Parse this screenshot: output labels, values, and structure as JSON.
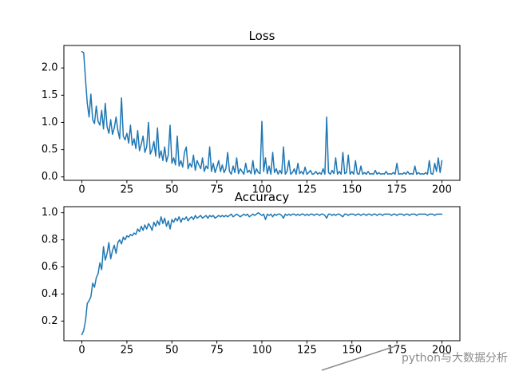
{
  "figure": {
    "background": "#ffffff",
    "line_color": "#1f77b4",
    "axis_color": "#000000",
    "watermark": {
      "text": "python与大数据分析",
      "color": "#8c8c8c"
    }
  },
  "chart_data": [
    {
      "type": "line",
      "title": "Loss",
      "xlabel": "",
      "ylabel": "",
      "legend": "none",
      "grid": false,
      "x_start": 0,
      "x_step": 1,
      "xlim": [
        -10,
        210
      ],
      "ylim": [
        -0.0625,
        2.4125
      ],
      "xticks": [
        0,
        25,
        50,
        75,
        100,
        125,
        150,
        175,
        200
      ],
      "yticks": [
        0.0,
        0.5,
        1.0,
        1.5,
        2.0
      ],
      "values": [
        2.3,
        2.28,
        1.8,
        1.35,
        1.1,
        1.52,
        1.05,
        0.98,
        1.3,
        1.02,
        0.95,
        1.22,
        0.88,
        1.35,
        0.92,
        0.8,
        1.05,
        0.78,
        0.9,
        1.1,
        0.85,
        0.7,
        1.45,
        0.75,
        0.68,
        0.8,
        0.62,
        0.95,
        0.58,
        0.7,
        0.52,
        0.85,
        0.48,
        0.6,
        0.75,
        0.45,
        0.55,
        1.0,
        0.42,
        0.5,
        0.65,
        0.38,
        0.9,
        0.35,
        0.48,
        0.3,
        0.55,
        0.28,
        0.4,
        0.95,
        0.25,
        0.35,
        0.22,
        0.75,
        0.2,
        0.3,
        0.18,
        0.45,
        0.55,
        0.15,
        0.25,
        0.18,
        0.4,
        0.12,
        0.3,
        0.22,
        0.15,
        0.35,
        0.1,
        0.2,
        0.15,
        0.55,
        0.1,
        0.25,
        0.08,
        0.18,
        0.3,
        0.1,
        0.22,
        0.08,
        0.15,
        0.45,
        0.1,
        0.05,
        0.2,
        0.08,
        0.35,
        0.06,
        0.15,
        0.1,
        0.05,
        0.25,
        0.08,
        0.12,
        0.06,
        0.3,
        0.05,
        0.15,
        0.08,
        0.06,
        1.02,
        0.1,
        0.35,
        0.06,
        0.2,
        0.05,
        0.45,
        0.08,
        0.15,
        0.05,
        0.12,
        0.06,
        0.55,
        0.05,
        0.1,
        0.3,
        0.05,
        0.08,
        0.15,
        0.05,
        0.25,
        0.06,
        0.1,
        0.05,
        0.18,
        0.05,
        0.08,
        0.12,
        0.05,
        0.06,
        0.1,
        0.05,
        0.08,
        0.05,
        0.15,
        0.05,
        1.1,
        0.08,
        0.05,
        0.12,
        0.06,
        0.35,
        0.05,
        0.1,
        0.05,
        0.45,
        0.06,
        0.08,
        0.4,
        0.05,
        0.1,
        0.05,
        0.3,
        0.06,
        0.05,
        0.2,
        0.05,
        0.08,
        0.05,
        0.1,
        0.05,
        0.06,
        0.05,
        0.12,
        0.05,
        0.08,
        0.05,
        0.06,
        0.05,
        0.1,
        0.05,
        0.06,
        0.05,
        0.08,
        0.05,
        0.25,
        0.05,
        0.06,
        0.05,
        0.08,
        0.05,
        0.1,
        0.05,
        0.06,
        0.05,
        0.2,
        0.05,
        0.08,
        0.05,
        0.06,
        0.05,
        0.08,
        0.05,
        0.3,
        0.06,
        0.05,
        0.25,
        0.1,
        0.35,
        0.08,
        0.3
      ]
    },
    {
      "type": "line",
      "title": "Accuracy",
      "xlabel": "",
      "ylabel": "",
      "legend": "none",
      "grid": false,
      "x_start": 0,
      "x_step": 1,
      "xlim": [
        -10,
        210
      ],
      "ylim": [
        0.055,
        1.045
      ],
      "xticks": [
        0,
        25,
        50,
        75,
        100,
        125,
        150,
        175,
        200
      ],
      "yticks": [
        0.2,
        0.4,
        0.6,
        0.8,
        1.0
      ],
      "values": [
        0.1,
        0.13,
        0.2,
        0.33,
        0.35,
        0.38,
        0.48,
        0.45,
        0.52,
        0.55,
        0.63,
        0.58,
        0.75,
        0.65,
        0.7,
        0.78,
        0.66,
        0.72,
        0.76,
        0.7,
        0.78,
        0.8,
        0.77,
        0.82,
        0.8,
        0.83,
        0.82,
        0.84,
        0.83,
        0.85,
        0.84,
        0.88,
        0.86,
        0.9,
        0.87,
        0.91,
        0.88,
        0.92,
        0.9,
        0.87,
        0.93,
        0.9,
        0.94,
        0.91,
        0.97,
        0.92,
        0.96,
        0.9,
        0.94,
        0.88,
        0.95,
        0.93,
        0.96,
        0.94,
        0.97,
        0.93,
        0.96,
        0.95,
        0.97,
        0.94,
        0.96,
        0.97,
        0.95,
        0.98,
        0.96,
        0.97,
        0.98,
        0.96,
        0.97,
        0.98,
        0.96,
        0.98,
        0.97,
        0.98,
        0.96,
        0.97,
        0.98,
        0.97,
        0.98,
        0.97,
        0.98,
        0.97,
        0.98,
        0.99,
        0.97,
        0.98,
        0.99,
        0.98,
        0.97,
        0.98,
        0.99,
        0.98,
        0.99,
        0.97,
        0.98,
        0.99,
        0.98,
        0.99,
        1.0,
        0.99,
        0.98,
        0.99,
        0.95,
        0.99,
        0.98,
        0.99,
        0.97,
        0.99,
        0.98,
        0.99,
        0.99,
        0.98,
        0.96,
        0.99,
        0.98,
        0.99,
        0.98,
        0.99,
        0.99,
        0.98,
        0.99,
        0.98,
        0.99,
        0.99,
        0.98,
        0.99,
        0.98,
        0.99,
        0.99,
        0.98,
        0.99,
        0.99,
        0.98,
        0.99,
        0.99,
        0.98,
        0.96,
        0.99,
        0.99,
        0.98,
        0.99,
        0.98,
        0.99,
        0.99,
        0.98,
        0.97,
        0.99,
        0.99,
        0.98,
        0.99,
        0.99,
        0.99,
        0.98,
        0.99,
        0.99,
        0.98,
        0.99,
        0.99,
        0.98,
        0.99,
        0.99,
        0.98,
        0.99,
        0.99,
        0.98,
        0.99,
        0.99,
        0.98,
        0.99,
        0.99,
        0.99,
        0.99,
        0.98,
        0.99,
        0.99,
        0.98,
        0.99,
        0.99,
        0.99,
        0.98,
        0.99,
        0.99,
        0.98,
        0.99,
        0.99,
        0.99,
        0.98,
        0.99,
        0.99,
        0.99,
        0.99,
        0.99,
        0.98,
        0.99,
        0.99,
        0.99,
        0.98,
        0.99,
        0.99,
        0.99,
        0.99
      ]
    }
  ]
}
